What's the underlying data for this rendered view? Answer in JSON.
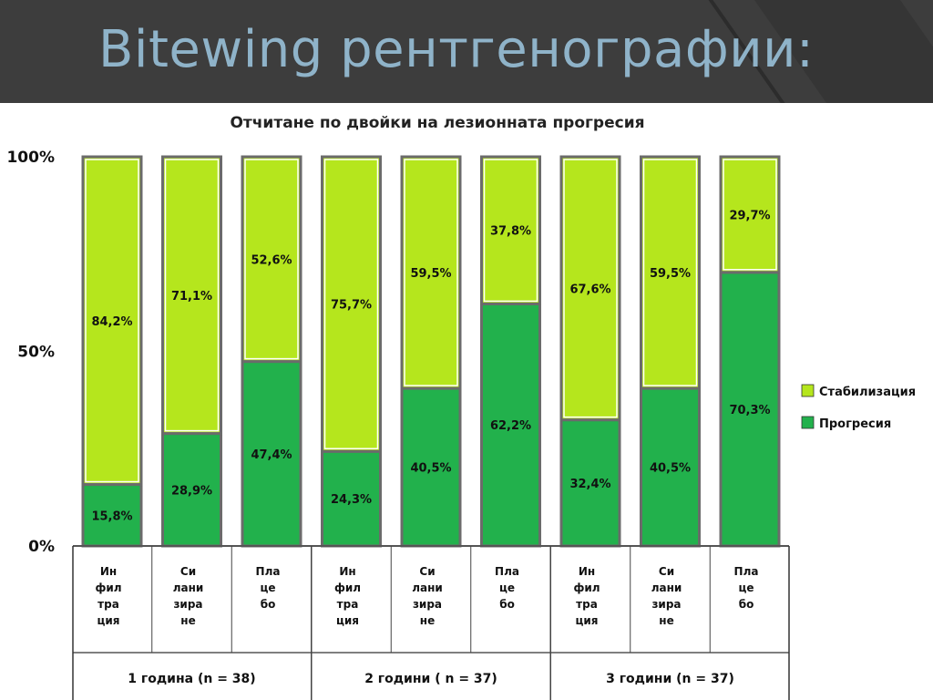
{
  "slide": {
    "title": "Bitewing рентгенографии:"
  },
  "chart_data": {
    "type": "bar",
    "stacked": true,
    "title": "Отчитане по двойки на лезионната прогресия",
    "y_ticks": [
      "100%",
      "50%",
      "0%"
    ],
    "ylim": [
      0,
      100
    ],
    "groups": [
      {
        "label": "1 година (n = 38)",
        "categories": [
          "Ин фил тра ция",
          "Си лани зира не",
          "Пла це бо"
        ]
      },
      {
        "label": "2 години ( n = 37)",
        "categories": [
          "Ин фил тра ция",
          "Си лани зира не",
          "Пла це бо"
        ]
      },
      {
        "label": "3 години (n = 37)",
        "categories": [
          "Ин фил тра ция",
          "Си лани зира не",
          "Пла це бо"
        ]
      }
    ],
    "category_lines": [
      [
        "Ин",
        "фил",
        "тра",
        "ция"
      ],
      [
        "Си",
        "лани",
        "зира",
        "не"
      ],
      [
        "Пла",
        "це",
        "бо"
      ],
      [
        "Ин",
        "фил",
        "тра",
        "ция"
      ],
      [
        "Си",
        "лани",
        "зира",
        "не"
      ],
      [
        "Пла",
        "це",
        "бо"
      ],
      [
        "Ин",
        "фил",
        "тра",
        "ция"
      ],
      [
        "Си",
        "лани",
        "зира",
        "не"
      ],
      [
        "Пла",
        "це",
        "бо"
      ]
    ],
    "series": [
      {
        "name": "Прогресия",
        "color": "#22b14c",
        "values": [
          15.8,
          28.9,
          47.4,
          24.3,
          40.5,
          62.2,
          32.4,
          40.5,
          70.3
        ],
        "labels": [
          "15,8%",
          "28,9%",
          "47,4%",
          "24,3%",
          "40,5%",
          "62,2%",
          "32,4%",
          "40,5%",
          "70,3%"
        ]
      },
      {
        "name": "Стабилизация",
        "color": "#b5e61d",
        "values": [
          84.2,
          71.1,
          52.6,
          75.7,
          59.5,
          37.8,
          67.6,
          59.5,
          29.7
        ],
        "labels": [
          "84,2%",
          "71,1%",
          "52,6%",
          "75,7%",
          "59,5%",
          "37,8%",
          "67,6%",
          "59,5%",
          "29,7%"
        ]
      }
    ],
    "legend": {
      "placement": "right",
      "items": [
        "Стабилизация",
        "Прогресия"
      ]
    },
    "grid": false
  }
}
